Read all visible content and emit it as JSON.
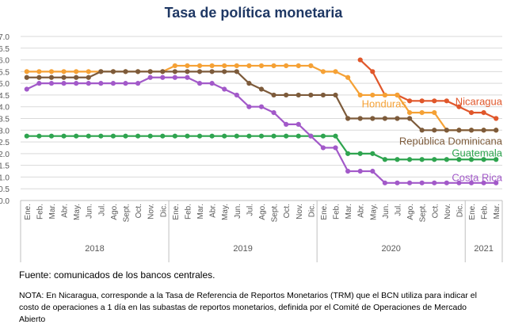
{
  "header": {
    "title": "Tasa de política monetaria"
  },
  "footer": {
    "source": "Fuente: comunicados de los bancos centrales.",
    "note": "NOTA: En Nicaragua, corresponde a la Tasa de Referencia de Reportos Monetarios (TRM) que el BCN utiliza para indicar el costo de operaciones a 1 día en las subastas de reportos monetarios, definida por el Comité de Operaciones de Mercado Abierto"
  },
  "chart_data": {
    "type": "line",
    "title": "Tasa de política monetaria",
    "ylim": [
      0,
      7
    ],
    "yticks": [
      "0.0",
      "0.5",
      "1.0",
      "1.5",
      "2.0",
      "2.5",
      "3.0",
      "3.5",
      "4.0",
      "4.5",
      "5.0",
      "5.5",
      "6.0",
      "6.5",
      "7.0"
    ],
    "categories": [
      "Ene.",
      "Feb.",
      "Mar.",
      "Abr.",
      "May.",
      "Jun.",
      "Jul.",
      "Ago.",
      "Sept.",
      "Oct.",
      "Nov.",
      "Dic.",
      "Ene.",
      "Feb.",
      "Mar.",
      "Abr.",
      "May.",
      "Jun.",
      "Jul.",
      "Ago.",
      "Sept.",
      "Oct.",
      "Nov.",
      "Dic.",
      "Ene.",
      "Feb.",
      "Mar.",
      "Abr.",
      "May.",
      "Jun.",
      "Jul.",
      "Ago.",
      "Sept.",
      "Oct.",
      "Nov.",
      "Dic.",
      "Ene.",
      "Feb.",
      "Mar."
    ],
    "year_groups": [
      {
        "label": "2018",
        "start": 0,
        "end": 11
      },
      {
        "label": "2019",
        "start": 12,
        "end": 23
      },
      {
        "label": "2020",
        "start": 24,
        "end": 35
      },
      {
        "label": "2021",
        "start": 36,
        "end": 38
      }
    ],
    "grid": true,
    "series": [
      {
        "name": "Nicaragua",
        "color": "#e0572b",
        "values": [
          null,
          null,
          null,
          null,
          null,
          null,
          null,
          null,
          null,
          null,
          null,
          null,
          null,
          null,
          null,
          null,
          null,
          null,
          null,
          null,
          null,
          null,
          null,
          null,
          null,
          null,
          null,
          6.0,
          5.5,
          4.5,
          4.5,
          4.25,
          4.25,
          4.25,
          4.25,
          4.0,
          3.75,
          3.75,
          3.5
        ]
      },
      {
        "name": "Honduras",
        "color": "#f5a135",
        "values": [
          5.5,
          5.5,
          5.5,
          5.5,
          5.5,
          5.5,
          5.5,
          5.5,
          5.5,
          5.5,
          5.5,
          5.5,
          5.75,
          5.75,
          5.75,
          5.75,
          5.75,
          5.75,
          5.75,
          5.75,
          5.75,
          5.75,
          5.75,
          5.75,
          5.5,
          5.5,
          5.25,
          4.5,
          4.5,
          4.5,
          4.5,
          3.75,
          3.75,
          3.75,
          3.0,
          3.0,
          3.0,
          3.0,
          3.0
        ]
      },
      {
        "name": "República Dominicana",
        "color": "#7d5b3b",
        "values": [
          5.25,
          5.25,
          5.25,
          5.25,
          5.25,
          5.25,
          5.5,
          5.5,
          5.5,
          5.5,
          5.5,
          5.5,
          5.5,
          5.5,
          5.5,
          5.5,
          5.5,
          5.5,
          5.0,
          4.75,
          4.5,
          4.5,
          4.5,
          4.5,
          4.5,
          4.5,
          3.5,
          3.5,
          3.5,
          3.5,
          3.5,
          3.5,
          3.0,
          3.0,
          3.0,
          3.0,
          3.0,
          3.0,
          3.0
        ]
      },
      {
        "name": "Guatemala",
        "color": "#2ea44f",
        "values": [
          2.75,
          2.75,
          2.75,
          2.75,
          2.75,
          2.75,
          2.75,
          2.75,
          2.75,
          2.75,
          2.75,
          2.75,
          2.75,
          2.75,
          2.75,
          2.75,
          2.75,
          2.75,
          2.75,
          2.75,
          2.75,
          2.75,
          2.75,
          2.75,
          2.75,
          2.75,
          2.0,
          2.0,
          2.0,
          1.75,
          1.75,
          1.75,
          1.75,
          1.75,
          1.75,
          1.75,
          1.75,
          1.75,
          1.75
        ]
      },
      {
        "name": "Costa Rica",
        "color": "#a259c9",
        "values": [
          4.75,
          5.0,
          5.0,
          5.0,
          5.0,
          5.0,
          5.0,
          5.0,
          5.0,
          5.0,
          5.25,
          5.25,
          5.25,
          5.25,
          5.0,
          5.0,
          4.75,
          4.5,
          4.0,
          4.0,
          3.75,
          3.25,
          3.25,
          2.75,
          2.25,
          2.25,
          1.25,
          1.25,
          1.25,
          0.75,
          0.75,
          0.75,
          0.75,
          0.75,
          0.75,
          0.75,
          0.75,
          0.75,
          0.75
        ]
      }
    ]
  }
}
